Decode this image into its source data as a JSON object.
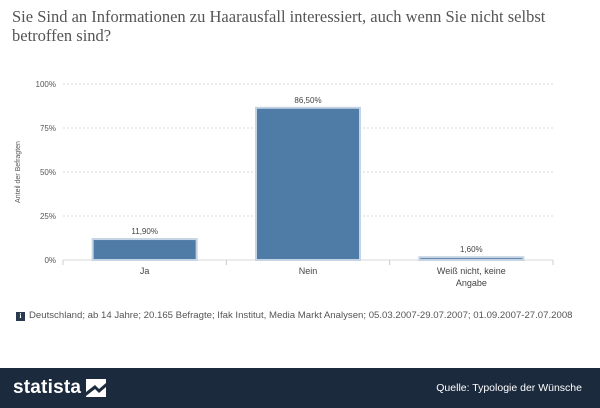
{
  "title": "Sie Sind an Informationen zu Haarausfall interessiert, auch wenn Sie nicht selbst betroffen sind?",
  "note": "Deutschland; ab 14 Jahre; 20.165 Befragte; Ifak Institut, Media Markt Analysen; 05.03.2007-29.07.2007; 01.09.2007-27.07.2008",
  "footer": {
    "logo": "statista",
    "source": "Quelle: Typologie der Wünsche"
  },
  "colors": {
    "bar": "#4f7ca6",
    "bar_edge": "#c5d3e3",
    "grid": "#d9d9d9"
  },
  "chart_data": {
    "type": "bar",
    "categories": [
      "Ja",
      "Nein",
      "Weiß nicht, keine Angabe"
    ],
    "category_lines": [
      [
        "Ja"
      ],
      [
        "Nein"
      ],
      [
        "Weiß nicht, keine",
        "Angabe"
      ]
    ],
    "values": [
      11.9,
      86.5,
      1.6
    ],
    "value_labels": [
      "11,90%",
      "86,50%",
      "1,60%"
    ],
    "ylabel": "Anteil der Befragten",
    "yticks": [
      0,
      25,
      50,
      75,
      100
    ],
    "ytick_labels": [
      "0%",
      "25%",
      "50%",
      "75%",
      "100%"
    ],
    "ylim": [
      0,
      100
    ],
    "grid": true
  }
}
